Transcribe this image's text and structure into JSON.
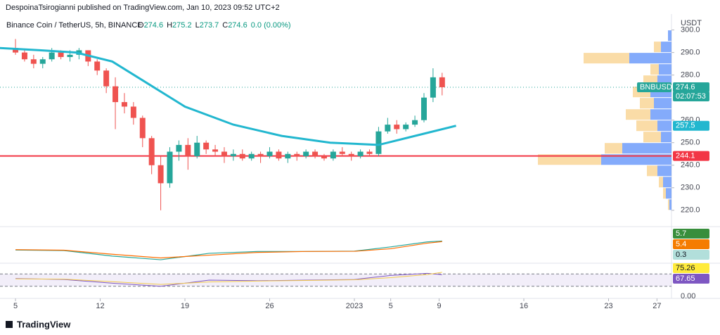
{
  "header": {
    "publisher": "DespoinaTsirogianni published on TradingView.com, Jan 10, 2023 09:52 UTC+2"
  },
  "legend": {
    "symbol": "Binance Coin / TetherUS, 5h, BINANCE",
    "ohlc": [
      {
        "label": "O",
        "value": "274.6"
      },
      {
        "label": "H",
        "value": "275.2"
      },
      {
        "label": "L",
        "value": "273.7"
      },
      {
        "label": "C",
        "value": "274.6"
      }
    ],
    "change": "0.0 (0.00%)"
  },
  "chart_data": [
    {
      "type": "candlestick",
      "axis_unit": "USDT",
      "x": [
        0,
        0.75,
        1.5,
        2.25,
        3,
        3.75,
        4.5,
        5.25,
        6,
        6.75,
        7.5,
        8.25,
        9,
        9.75,
        10.5,
        11.25,
        12,
        12.75,
        13.5,
        14.25,
        15,
        15.75,
        16.5,
        17.25,
        18,
        18.75,
        19.5,
        20.25,
        21,
        21.75,
        22.5,
        23.25,
        24,
        24.75,
        25.5,
        26.25,
        27,
        27.75,
        28.5,
        29.25,
        30,
        30.75,
        31.5,
        32.25,
        33,
        33.75,
        34.5,
        35.25
      ],
      "open": [
        292,
        290,
        287,
        285,
        287,
        290,
        288,
        289,
        291,
        286,
        282,
        275,
        268,
        266,
        261,
        252,
        240,
        232,
        246,
        249,
        244,
        250,
        247,
        246,
        244,
        245,
        243,
        245,
        244,
        246,
        243,
        245,
        244,
        246,
        244,
        243,
        246,
        245,
        244,
        246,
        245,
        255,
        258,
        256,
        258,
        260,
        270,
        279
      ],
      "high": [
        296,
        291,
        289,
        288,
        292,
        291,
        291,
        292,
        291,
        287,
        283,
        279,
        272,
        268,
        262,
        253,
        244,
        248,
        251,
        252,
        253,
        251,
        249,
        248,
        247,
        247,
        246,
        246,
        248,
        247,
        246,
        246,
        247,
        247,
        245,
        247,
        248,
        246,
        247,
        247,
        257,
        261,
        260,
        259,
        262,
        272,
        283,
        281
      ],
      "low": [
        289,
        286,
        283,
        283,
        286,
        287,
        286,
        287,
        284,
        280,
        272,
        256,
        263,
        258,
        248,
        236,
        220,
        230,
        242,
        238,
        243,
        245,
        244,
        241,
        242,
        242,
        242,
        241,
        243,
        242,
        241,
        242,
        243,
        243,
        242,
        242,
        244,
        242,
        243,
        244,
        244,
        254,
        254,
        255,
        257,
        259,
        268,
        271
      ],
      "close": [
        290,
        287,
        285,
        287,
        290,
        288,
        289,
        291,
        286,
        282,
        275,
        268,
        266,
        261,
        252,
        240,
        232,
        246,
        249,
        244,
        250,
        247,
        246,
        244,
        245,
        243,
        245,
        244,
        246,
        243,
        245,
        244,
        246,
        244,
        243,
        246,
        245,
        244,
        246,
        245,
        255,
        258,
        256,
        258,
        260,
        270,
        279,
        274.6
      ],
      "ma": {
        "color": "#22b7cf",
        "x": [
          -1.3,
          2,
          5,
          8,
          11,
          14,
          18,
          22,
          26,
          30,
          33,
          36.4
        ],
        "values": [
          292,
          291,
          290,
          286,
          276,
          266,
          258,
          253,
          250,
          249,
          253,
          257.5
        ]
      },
      "hline": {
        "value": 244.1,
        "color": "#f23645"
      },
      "last": 274.6,
      "volume_profile": {
        "prices": [
          222.5,
          227.5,
          232.5,
          237.5,
          242.5,
          247.5,
          252.5,
          257.5,
          262.5,
          267.5,
          272.5,
          277.5,
          282.5,
          287.5,
          292.5,
          297.5
        ],
        "up": [
          3,
          8,
          12,
          20,
          100,
          70,
          15,
          20,
          30,
          25,
          30,
          20,
          18,
          60,
          15,
          5
        ],
        "down": [
          2,
          4,
          6,
          15,
          90,
          25,
          25,
          30,
          35,
          20,
          25,
          20,
          12,
          65,
          10,
          0
        ],
        "up_color": "#5b8ff9",
        "down_color": "#f7c46c"
      },
      "ylim": [
        214,
        303
      ],
      "yticks": [
        {
          "value": 300,
          "label": "300.0"
        },
        {
          "value": 290,
          "label": "290.0"
        },
        {
          "value": 280,
          "label": "280.0"
        },
        {
          "value": 260,
          "label": "260.0"
        },
        {
          "value": 250,
          "label": "250.0"
        },
        {
          "value": 240,
          "label": "240.0"
        },
        {
          "value": 230,
          "label": "230.0"
        },
        {
          "value": 220,
          "label": "220.0"
        }
      ],
      "xlim": [
        -1.28,
        54.2
      ],
      "xticks": [
        {
          "value": 0,
          "label": "5"
        },
        {
          "value": 7,
          "label": "12"
        },
        {
          "value": 14,
          "label": "19"
        },
        {
          "value": 21,
          "label": "26"
        },
        {
          "value": 28,
          "label": "2023"
        },
        {
          "value": 31,
          "label": "5"
        },
        {
          "value": 35,
          "label": "9"
        },
        {
          "value": 42,
          "label": "16"
        },
        {
          "value": 49,
          "label": "23"
        },
        {
          "value": 53,
          "label": "27"
        }
      ]
    },
    {
      "type": "line",
      "x": [
        0,
        4,
        8,
        12,
        16,
        20,
        24,
        28,
        31,
        34,
        35.25
      ],
      "series": [
        {
          "color": "#26a69a",
          "values": [
            0.8,
            0.5,
            -2.5,
            -4.5,
            -1,
            0,
            0,
            0.2,
            2.5,
            5.2,
            5.7
          ]
        },
        {
          "color": "#ff6d00",
          "values": [
            1,
            0.7,
            -1.5,
            -3.5,
            -2,
            -0.5,
            0,
            0.1,
            1.5,
            4.5,
            5.4
          ]
        }
      ],
      "ylim": [
        -6,
        12
      ],
      "badges": [
        {
          "value": "5.7",
          "color": "#388e3c"
        },
        {
          "value": "5.4",
          "color": "#f57c00"
        },
        {
          "value": "0.3",
          "color": "#b2dfdb"
        }
      ]
    },
    {
      "type": "line",
      "x": [
        0,
        4,
        8,
        12,
        16,
        20,
        24,
        28,
        31,
        34,
        35.25
      ],
      "series": [
        {
          "color": "#7e57c2",
          "values": [
            55,
            52,
            40,
            30,
            50,
            48,
            50,
            52,
            65,
            72,
            67.65
          ]
        },
        {
          "color": "#f2c94c",
          "values": [
            54,
            53,
            45,
            36,
            44,
            47,
            49,
            51,
            58,
            68,
            75.26
          ]
        }
      ],
      "ylim": [
        0,
        100
      ],
      "bands": [
        30,
        70
      ],
      "ytick": {
        "value": 0,
        "label": "0.00"
      },
      "badges": [
        {
          "value": "75.26",
          "color": "#ffeb3b"
        },
        {
          "value": "67.65",
          "color": "#7e57c2"
        }
      ]
    }
  ],
  "badges": {
    "symbol": "BNBUSDT",
    "price": "274.6",
    "countdown": "02:07:53",
    "ma": "257.5",
    "line": "244.1"
  },
  "footer": {
    "brand": "TradingView"
  }
}
